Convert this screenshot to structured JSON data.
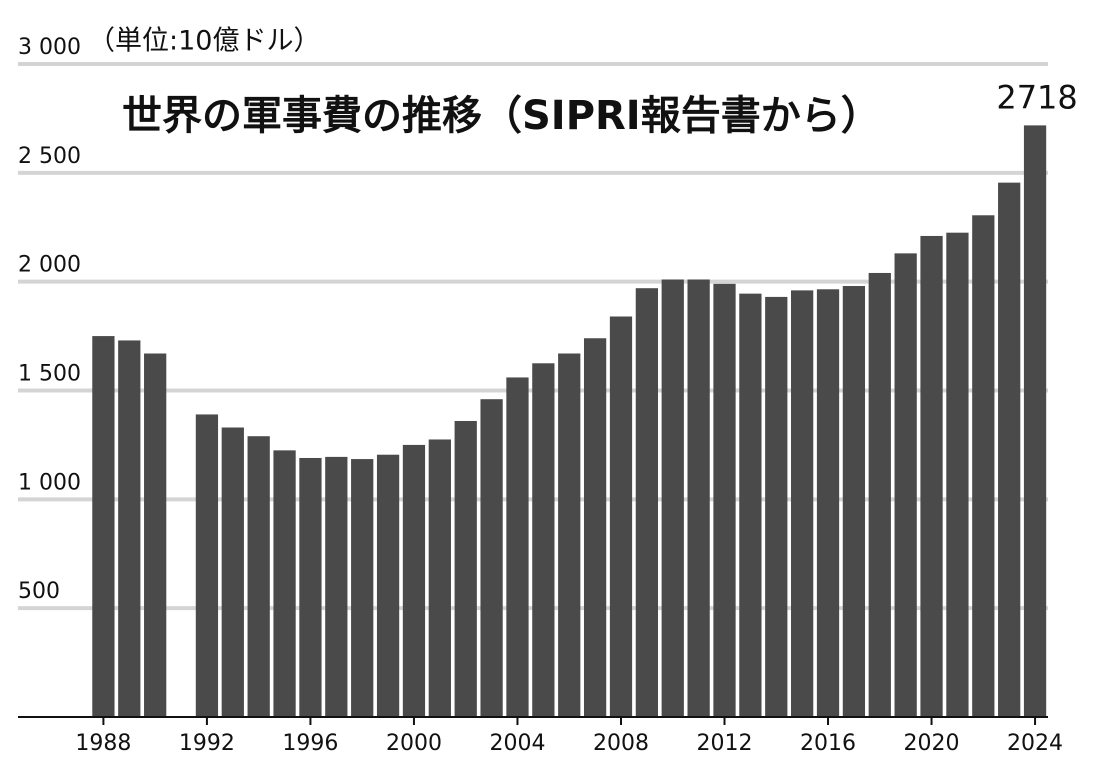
{
  "chart_data": {
    "type": "bar",
    "title": "世界の軍事費の推移（SIPRI報告書から）",
    "y_label": "（単位:10億ドル）",
    "x": [
      1988,
      1989,
      1990,
      1991,
      1992,
      1993,
      1994,
      1995,
      1996,
      1997,
      1998,
      1999,
      2000,
      2001,
      2002,
      2003,
      2004,
      2005,
      2006,
      2007,
      2008,
      2009,
      2010,
      2011,
      2012,
      2013,
      2014,
      2015,
      2016,
      2017,
      2018,
      2019,
      2020,
      2021,
      2022,
      2023,
      2024
    ],
    "values": [
      1750,
      1730,
      1670,
      null,
      1390,
      1330,
      1290,
      1225,
      1190,
      1195,
      1185,
      1205,
      1250,
      1275,
      1360,
      1460,
      1560,
      1625,
      1670,
      1740,
      1840,
      1970,
      2010,
      2010,
      1990,
      1945,
      1930,
      1960,
      1965,
      1980,
      2040,
      2130,
      2210,
      2225,
      2305,
      2455,
      2718
    ],
    "color": "#4a4a4a",
    "xlim": [
      1984.7,
      2024.5
    ],
    "xticks": [
      1988,
      1992,
      1996,
      2000,
      2004,
      2008,
      2012,
      2016,
      2020,
      2024
    ],
    "ylim": [
      0,
      3000
    ],
    "yticks": [
      500,
      {
        "value": 1000,
        "label": "1 000"
      },
      {
        "value": 1500,
        "label": "1 500"
      },
      {
        "value": 2000,
        "label": "2 000"
      },
      {
        "value": 2500,
        "label": "2 500"
      },
      {
        "value": 3000,
        "label": "3 000"
      }
    ],
    "grid": true
  }
}
